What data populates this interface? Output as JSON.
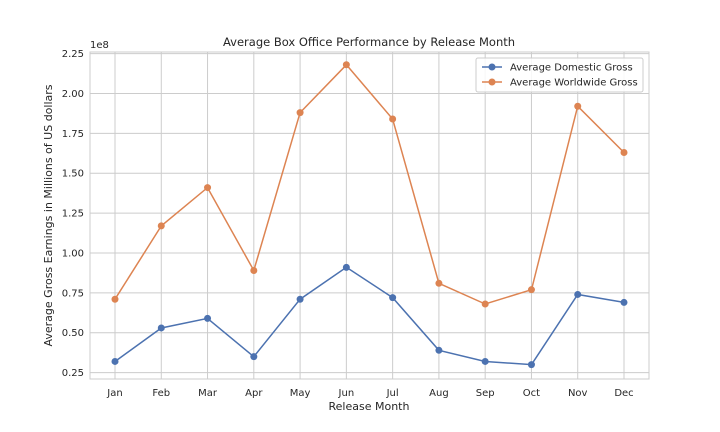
{
  "chart_data": {
    "type": "line",
    "title": "Average Box Office Performance by Release Month",
    "xlabel": "Release Month",
    "ylabel": "Average Gross Earnings in Millions of US dollars",
    "y_offset_label": "1e8",
    "categories": [
      "Jan",
      "Feb",
      "Mar",
      "Apr",
      "May",
      "Jun",
      "Jul",
      "Aug",
      "Sep",
      "Oct",
      "Nov",
      "Dec"
    ],
    "ylim": [
      0.21,
      2.26
    ],
    "yticks": [
      0.25,
      0.5,
      0.75,
      1.0,
      1.25,
      1.5,
      1.75,
      2.0,
      2.25
    ],
    "ytick_labels": [
      "0.25",
      "0.50",
      "0.75",
      "1.00",
      "1.25",
      "1.50",
      "1.75",
      "2.00",
      "2.25"
    ],
    "grid": true,
    "legend_position": "top-right",
    "series": [
      {
        "name": "Average Domestic Gross",
        "color": "#4c72b0",
        "values": [
          0.32,
          0.53,
          0.59,
          0.35,
          0.71,
          0.91,
          0.72,
          0.39,
          0.32,
          0.3,
          0.74,
          0.69
        ]
      },
      {
        "name": "Average Worldwide Gross",
        "color": "#dd8452",
        "values": [
          0.71,
          1.17,
          1.41,
          0.89,
          1.88,
          2.18,
          1.84,
          0.81,
          0.68,
          0.77,
          1.92,
          1.63
        ]
      }
    ]
  }
}
